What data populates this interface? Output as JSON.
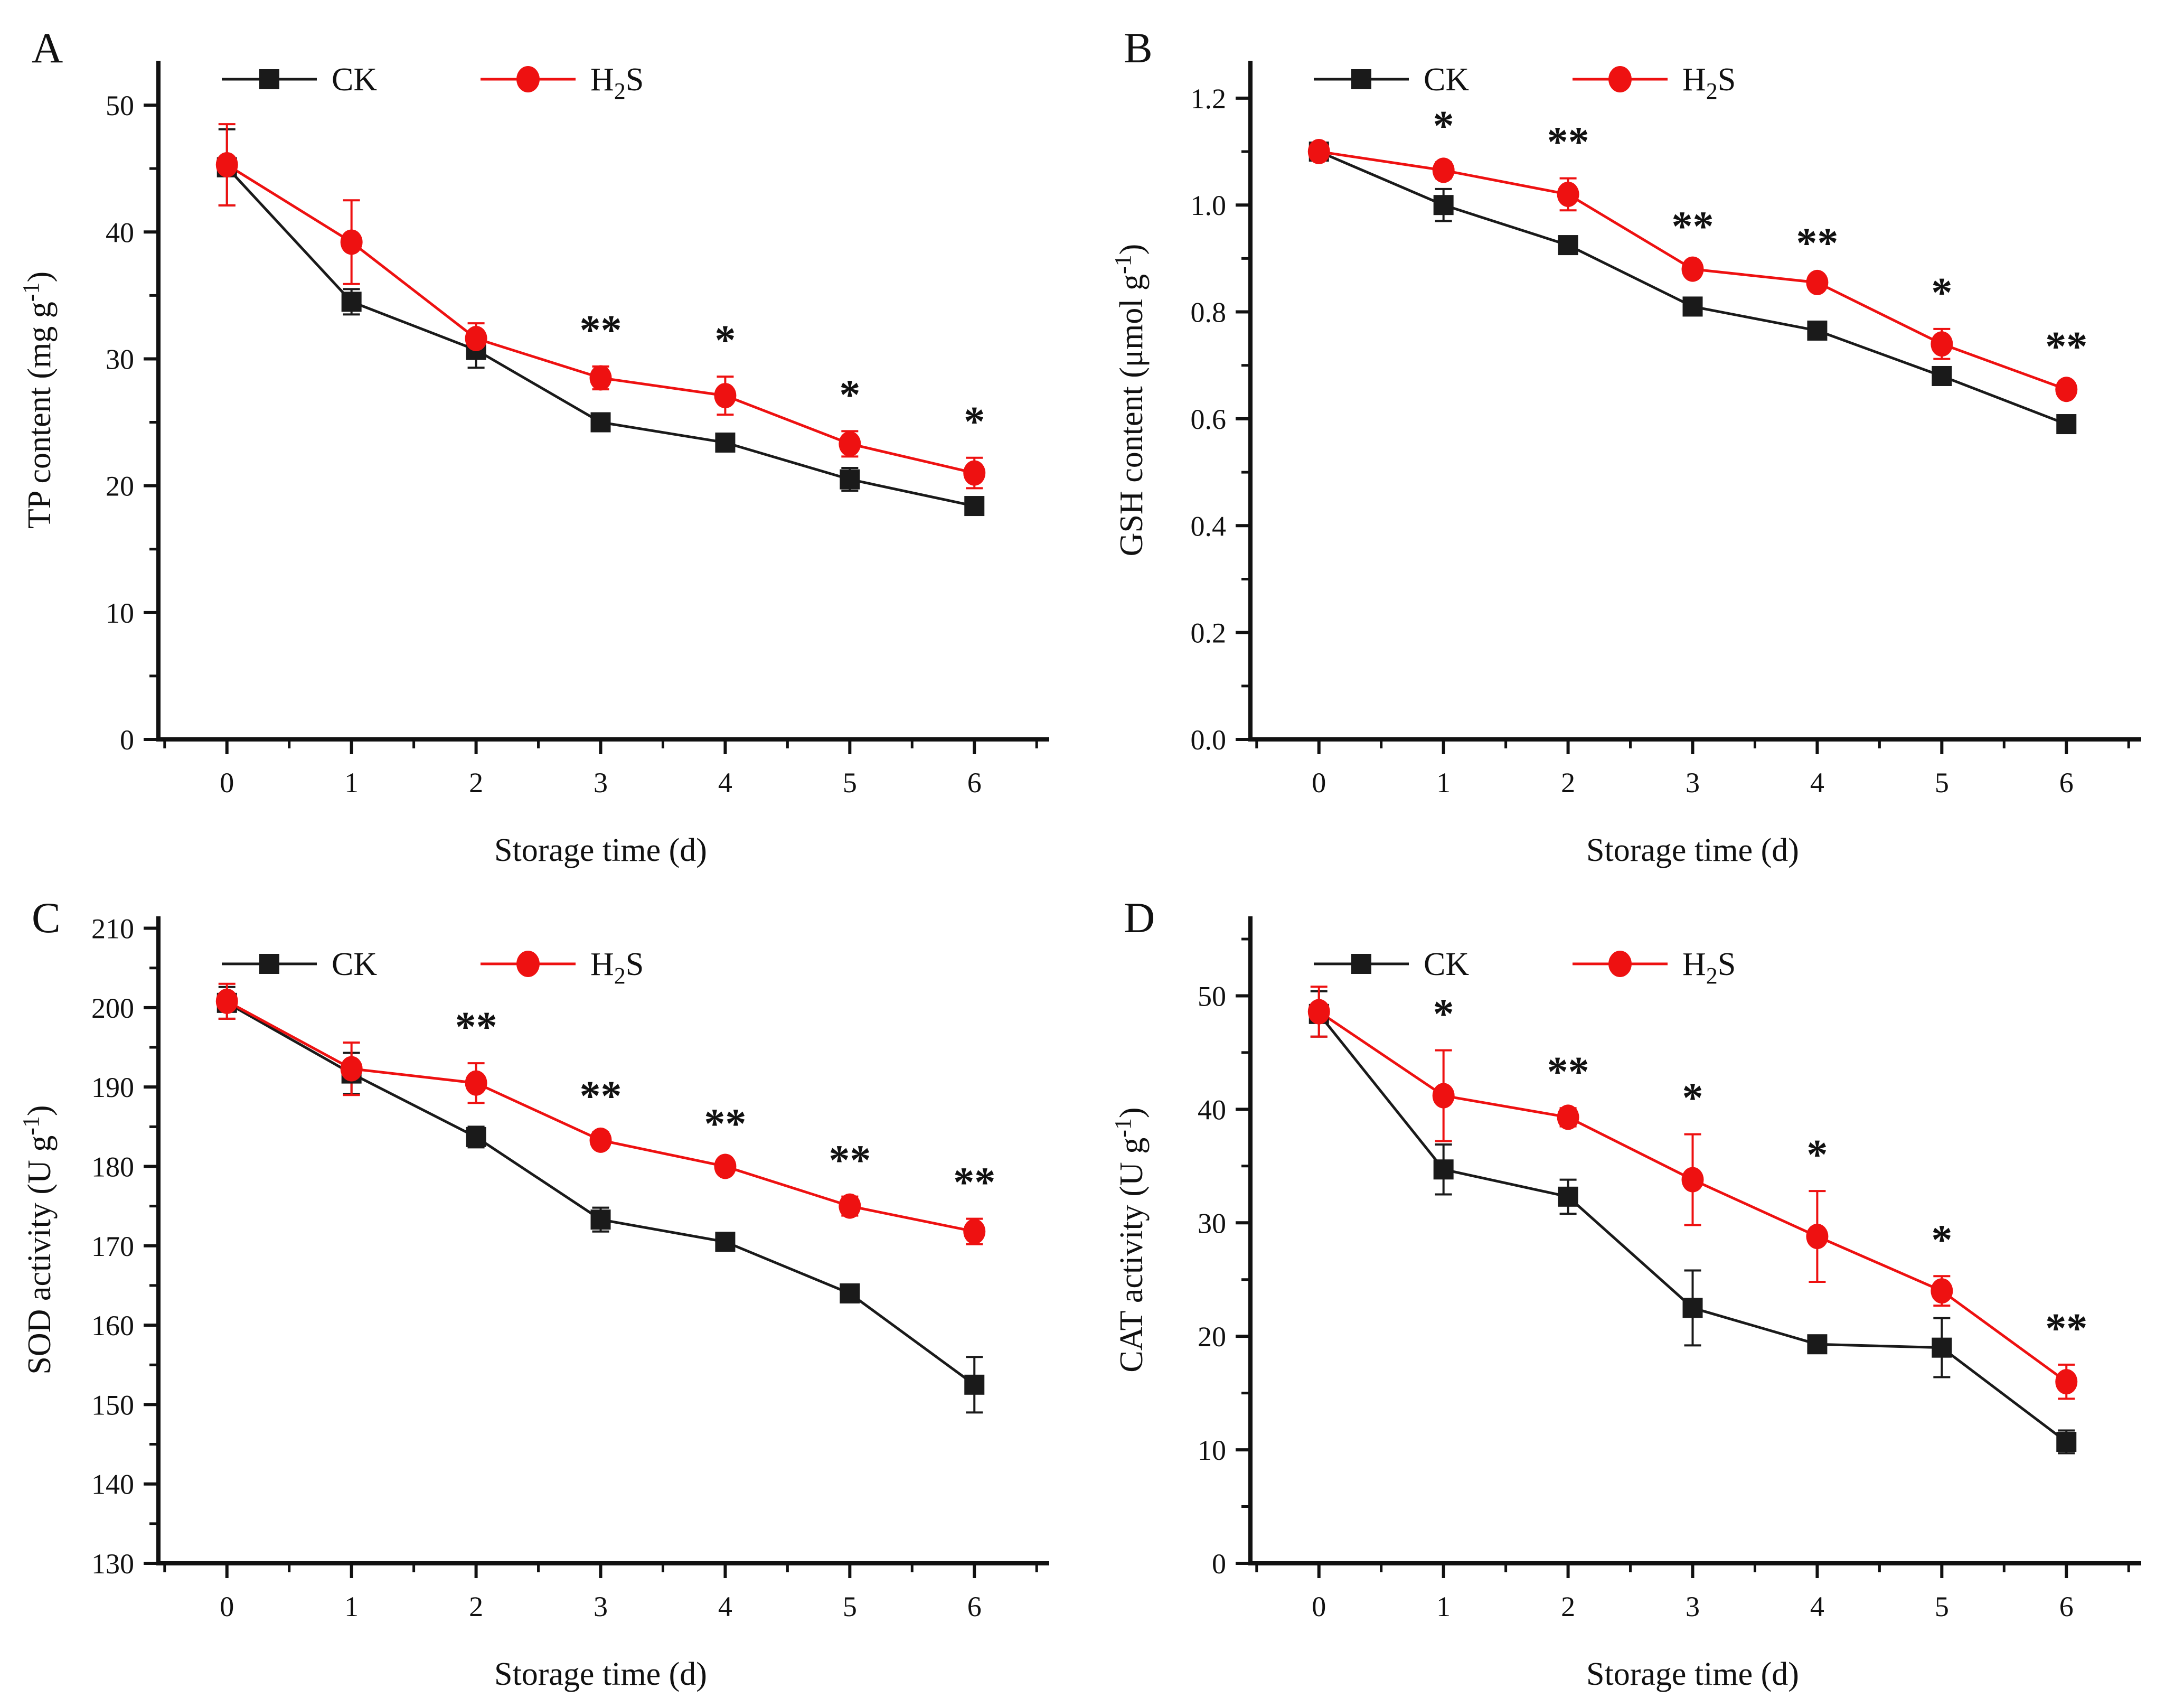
{
  "figure": {
    "background": "#ffffff",
    "series_colors": {
      "ck": "#1a1a1a",
      "h2s": "#ee1111"
    }
  },
  "chart_data": [
    {
      "panel_letter": "A",
      "type": "line",
      "title": "",
      "xlabel": "Storage time (d)",
      "ylabel_pre": "TP content (mg g",
      "ylabel_sup": "-1",
      "ylabel_post": ")",
      "xlim": [
        -0.55,
        6.55
      ],
      "ylim": [
        0,
        53.5
      ],
      "x": [
        0,
        1,
        2,
        3,
        4,
        5,
        6
      ],
      "xticks": [
        0,
        1,
        2,
        3,
        4,
        5,
        6
      ],
      "xtick_labels": [
        "0",
        "1",
        "2",
        "3",
        "4",
        "5",
        "6"
      ],
      "xminors": [
        -0.5,
        0.5,
        1.5,
        2.5,
        3.5,
        4.5,
        5.5,
        6.5
      ],
      "yticks": [
        0,
        10,
        20,
        30,
        40,
        50
      ],
      "ytick_labels": [
        "0",
        "10",
        "20",
        "30",
        "40",
        "50"
      ],
      "yminors": [
        5,
        15,
        25,
        35,
        45
      ],
      "legend": [
        {
          "pre": "CK",
          "sub": "",
          "post": ""
        },
        {
          "pre": "H",
          "sub": "2",
          "post": "S"
        }
      ],
      "series": [
        {
          "name": "CK",
          "color": "#1a1a1a",
          "marker": "square",
          "values": [
            45.1,
            34.5,
            30.7,
            25.0,
            23.4,
            20.5,
            18.4
          ],
          "errors": [
            3.0,
            1.0,
            1.4,
            0.6,
            0.5,
            0.9,
            0.5
          ]
        },
        {
          "name": "H2S",
          "color": "#ee1111",
          "marker": "circle",
          "values": [
            45.3,
            39.2,
            31.6,
            28.5,
            27.1,
            23.3,
            21.0
          ],
          "errors": [
            3.2,
            3.3,
            1.2,
            0.9,
            1.5,
            1.0,
            1.2
          ]
        }
      ],
      "significance": [
        {
          "x": 3,
          "label": "**"
        },
        {
          "x": 4,
          "label": "*"
        },
        {
          "x": 5,
          "label": "*"
        },
        {
          "x": 6,
          "label": "*"
        }
      ]
    },
    {
      "panel_letter": "B",
      "type": "line",
      "title": "",
      "xlabel": "Storage time (d)",
      "ylabel_pre": "GSH content (μmol g",
      "ylabel_sup": "-1",
      "ylabel_post": ")",
      "xlim": [
        -0.55,
        6.55
      ],
      "ylim": [
        0,
        1.27
      ],
      "x": [
        0,
        1,
        2,
        3,
        4,
        5,
        6
      ],
      "xticks": [
        0,
        1,
        2,
        3,
        4,
        5,
        6
      ],
      "xtick_labels": [
        "0",
        "1",
        "2",
        "3",
        "4",
        "5",
        "6"
      ],
      "xminors": [
        -0.5,
        0.5,
        1.5,
        2.5,
        3.5,
        4.5,
        5.5,
        6.5
      ],
      "yticks": [
        0,
        0.2,
        0.4,
        0.6,
        0.8,
        1.0,
        1.2
      ],
      "ytick_labels": [
        "0.0",
        "0.2",
        "0.4",
        "0.6",
        "0.8",
        "1.0",
        "1.2"
      ],
      "yminors": [
        0.1,
        0.3,
        0.5,
        0.7,
        0.9,
        1.1
      ],
      "legend": [
        {
          "pre": "CK",
          "sub": "",
          "post": ""
        },
        {
          "pre": "H",
          "sub": "2",
          "post": "S"
        }
      ],
      "series": [
        {
          "name": "CK",
          "color": "#1a1a1a",
          "marker": "square",
          "values": [
            1.1,
            1.0,
            0.925,
            0.81,
            0.765,
            0.68,
            0.59
          ],
          "errors": [
            0.01,
            0.03,
            0.012,
            0.01,
            0.006,
            0.012,
            0.006
          ]
        },
        {
          "name": "H2S",
          "color": "#ee1111",
          "marker": "circle",
          "values": [
            1.1,
            1.065,
            1.02,
            0.88,
            0.855,
            0.74,
            0.655
          ],
          "errors": [
            0.012,
            0.015,
            0.03,
            0.012,
            0.006,
            0.028,
            0.012
          ]
        }
      ],
      "significance": [
        {
          "x": 1,
          "label": "*"
        },
        {
          "x": 2,
          "label": "**"
        },
        {
          "x": 3,
          "label": "**"
        },
        {
          "x": 4,
          "label": "**"
        },
        {
          "x": 5,
          "label": "*"
        },
        {
          "x": 6,
          "label": "**"
        }
      ]
    },
    {
      "panel_letter": "C",
      "type": "line",
      "title": "",
      "xlabel": "Storage time (d)",
      "ylabel_pre": "SOD activity (U g",
      "ylabel_sup": "-1",
      "ylabel_post": ")",
      "xlim": [
        -0.55,
        6.55
      ],
      "ylim": [
        130,
        211.5
      ],
      "x": [
        0,
        1,
        2,
        3,
        4,
        5,
        6
      ],
      "xticks": [
        0,
        1,
        2,
        3,
        4,
        5,
        6
      ],
      "xtick_labels": [
        "0",
        "1",
        "2",
        "3",
        "4",
        "5",
        "6"
      ],
      "xminors": [
        -0.5,
        0.5,
        1.5,
        2.5,
        3.5,
        4.5,
        5.5,
        6.5
      ],
      "yticks": [
        130,
        140,
        150,
        160,
        170,
        180,
        190,
        200,
        210
      ],
      "ytick_labels": [
        "130",
        "140",
        "150",
        "160",
        "170",
        "180",
        "190",
        "200",
        "210"
      ],
      "yminors": [
        135,
        145,
        155,
        165,
        175,
        185,
        195,
        205
      ],
      "legend": [
        {
          "pre": "CK",
          "sub": "",
          "post": ""
        },
        {
          "pre": "H",
          "sub": "2",
          "post": "S"
        }
      ],
      "series": [
        {
          "name": "CK",
          "color": "#1a1a1a",
          "marker": "square",
          "values": [
            200.6,
            191.7,
            183.7,
            173.3,
            170.5,
            164.0,
            152.5
          ],
          "errors": [
            2.0,
            2.6,
            1.3,
            1.5,
            1.0,
            0.5,
            3.5
          ]
        },
        {
          "name": "H2S",
          "color": "#ee1111",
          "marker": "circle",
          "values": [
            200.8,
            192.3,
            190.5,
            183.3,
            180.0,
            175.0,
            171.8
          ],
          "errors": [
            2.2,
            3.3,
            2.5,
            1.0,
            0.8,
            1.2,
            1.6
          ]
        }
      ],
      "significance": [
        {
          "x": 2,
          "label": "**"
        },
        {
          "x": 3,
          "label": "**"
        },
        {
          "x": 4,
          "label": "**"
        },
        {
          "x": 5,
          "label": "**"
        },
        {
          "x": 6,
          "label": "**"
        }
      ]
    },
    {
      "panel_letter": "D",
      "type": "line",
      "title": "",
      "xlabel": "Storage time (d)",
      "ylabel_pre": "CAT activity (U g",
      "ylabel_sup": "-1",
      "ylabel_post": ")",
      "xlim": [
        -0.55,
        6.55
      ],
      "ylim": [
        0,
        57
      ],
      "x": [
        0,
        1,
        2,
        3,
        4,
        5,
        6
      ],
      "xticks": [
        0,
        1,
        2,
        3,
        4,
        5,
        6
      ],
      "xtick_labels": [
        "0",
        "1",
        "2",
        "3",
        "4",
        "5",
        "6"
      ],
      "xminors": [
        -0.5,
        0.5,
        1.5,
        2.5,
        3.5,
        4.5,
        5.5,
        6.5
      ],
      "yticks": [
        0,
        10,
        20,
        30,
        40,
        50
      ],
      "ytick_labels": [
        "0",
        "10",
        "20",
        "30",
        "40",
        "50"
      ],
      "yminors": [
        5,
        15,
        25,
        35,
        45,
        55
      ],
      "legend": [
        {
          "pre": "CK",
          "sub": "",
          "post": ""
        },
        {
          "pre": "H",
          "sub": "2",
          "post": "S"
        }
      ],
      "series": [
        {
          "name": "CK",
          "color": "#1a1a1a",
          "marker": "square",
          "values": [
            48.4,
            34.7,
            32.3,
            22.5,
            19.3,
            19.0,
            10.7
          ],
          "errors": [
            2.0,
            2.2,
            1.5,
            3.3,
            0.7,
            2.6,
            1.0
          ]
        },
        {
          "name": "H2S",
          "color": "#ee1111",
          "marker": "circle",
          "values": [
            48.6,
            41.2,
            39.3,
            33.8,
            28.8,
            24.0,
            16.0
          ],
          "errors": [
            2.2,
            4.0,
            0.8,
            4.0,
            4.0,
            1.3,
            1.5
          ]
        }
      ],
      "significance": [
        {
          "x": 1,
          "label": "*"
        },
        {
          "x": 2,
          "label": "**"
        },
        {
          "x": 3,
          "label": "*"
        },
        {
          "x": 4,
          "label": "*"
        },
        {
          "x": 5,
          "label": "*"
        },
        {
          "x": 6,
          "label": "**"
        }
      ]
    }
  ]
}
